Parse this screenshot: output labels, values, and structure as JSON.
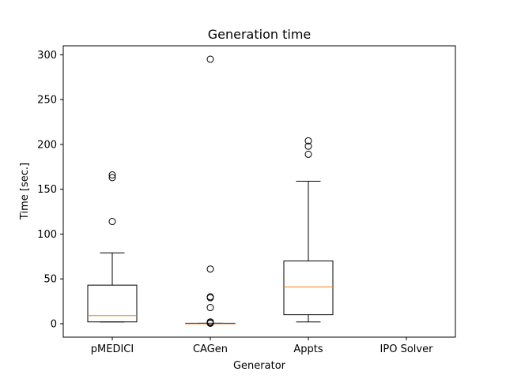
{
  "chart_data": {
    "type": "boxplot",
    "title": "Generation time",
    "xlabel": "Generator",
    "ylabel": "Time [sec.]",
    "ylim": [
      -15,
      310
    ],
    "yticks": [
      0,
      50,
      100,
      150,
      200,
      250,
      300
    ],
    "grid": false,
    "categories": [
      "pMEDICI",
      "CAGen",
      "Appts",
      "IPO Solver"
    ],
    "series": [
      {
        "category": "pMEDICI",
        "whisker_low": 2,
        "q1": 2,
        "median": 9,
        "q3": 43,
        "whisker_high": 79,
        "outliers": [
          114,
          163,
          166
        ]
      },
      {
        "category": "CAGen",
        "whisker_low": 0,
        "q1": 0,
        "median": 0,
        "q3": 0.5,
        "whisker_high": 0.5,
        "outliers": [
          0.5,
          1,
          2,
          18,
          29,
          30,
          61,
          295
        ]
      },
      {
        "category": "Appts",
        "whisker_low": 2,
        "q1": 10,
        "median": 41,
        "q3": 70,
        "whisker_high": 159,
        "outliers": [
          189,
          198,
          204
        ]
      },
      {
        "category": "IPO Solver",
        "empty": true
      }
    ],
    "colors": {
      "box": "#000000",
      "median": "#ff7f0e"
    }
  }
}
